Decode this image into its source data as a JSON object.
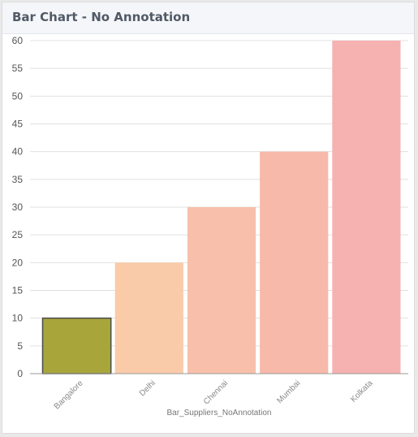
{
  "card": {
    "title": "Bar Chart - No Annotation"
  },
  "chart_data": {
    "type": "bar",
    "categories": [
      "Bangalore",
      "Delhi",
      "Chennai",
      "Mumbai",
      "Kolkata"
    ],
    "values": [
      10,
      20,
      30,
      40,
      60
    ],
    "colors": [
      "#a8a63a",
      "#f9cba9",
      "#f8c0aa",
      "#f7b9aa",
      "#f6b1b1"
    ],
    "highlighted_index": 0,
    "highlight_stroke": "#4b4b4b",
    "xlabel": "Bar_Suppliers_NoAnnotation",
    "ylabel": "",
    "ylim": [
      0,
      60
    ],
    "yticks": [
      0,
      5,
      10,
      15,
      20,
      25,
      30,
      35,
      40,
      45,
      50,
      55,
      60
    ],
    "grid": true,
    "legend": "none"
  }
}
